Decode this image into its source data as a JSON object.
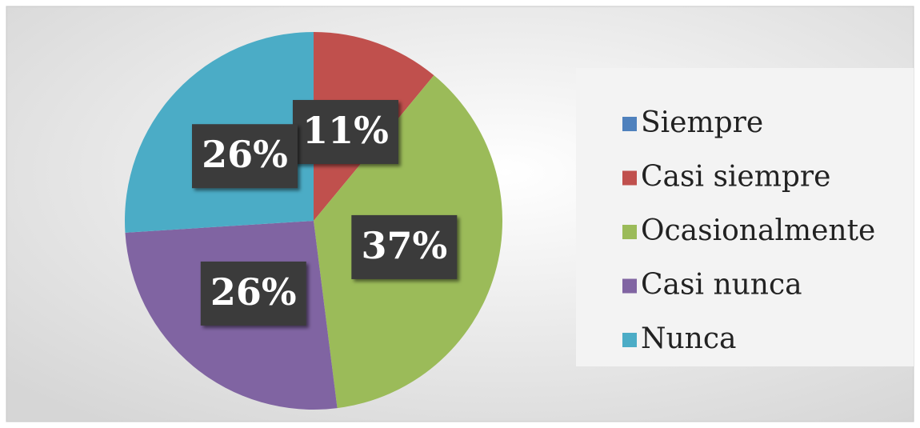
{
  "chart_data": {
    "type": "pie",
    "categories": [
      "Siempre",
      "Casi siempre",
      "Ocasionalmente",
      "Casi nunca",
      "Nunca"
    ],
    "values": [
      0,
      11,
      37,
      26,
      26
    ],
    "value_labels": [
      null,
      "11%",
      "37%",
      "26%",
      "26%"
    ],
    "colors": [
      "#4f81bd",
      "#c0504d",
      "#9bbb59",
      "#8064a2",
      "#4bacc6"
    ],
    "legend": "right"
  }
}
